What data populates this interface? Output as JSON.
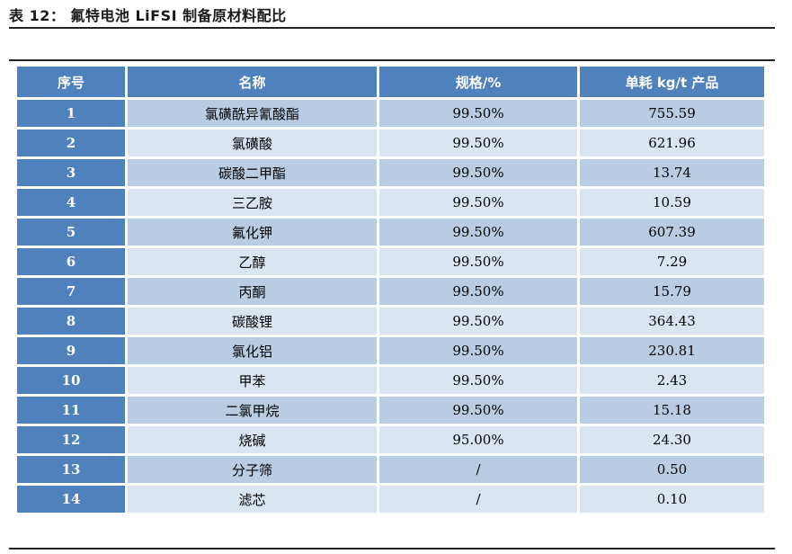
{
  "title": "表 12：  氟特电池 LiFSI 制备原材料配比",
  "headers": [
    "序号",
    "名称",
    "规格/%",
    "单耗 kg/t 产品"
  ],
  "rows": [
    {
      "no": "1",
      "name": "氯磺酰异氰酸酯",
      "spec": "99.50%",
      "usage": "755.59"
    },
    {
      "no": "2",
      "name": "氯磺酸",
      "spec": "99.50%",
      "usage": "621.96"
    },
    {
      "no": "3",
      "name": "碳酸二甲酯",
      "spec": "99.50%",
      "usage": "13.74"
    },
    {
      "no": "4",
      "name": "三乙胺",
      "spec": "99.50%",
      "usage": "10.59"
    },
    {
      "no": "5",
      "name": "氟化钾",
      "spec": "99.50%",
      "usage": "607.39"
    },
    {
      "no": "6",
      "name": "乙醇",
      "spec": "99.50%",
      "usage": "7.29"
    },
    {
      "no": "7",
      "name": "丙酮",
      "spec": "99.50%",
      "usage": "15.79"
    },
    {
      "no": "8",
      "name": "碳酸锂",
      "spec": "99.50%",
      "usage": "364.43"
    },
    {
      "no": "9",
      "name": "氯化铝",
      "spec": "99.50%",
      "usage": "230.81"
    },
    {
      "no": "10",
      "name": "甲苯",
      "spec": "99.50%",
      "usage": "2.43"
    },
    {
      "no": "11",
      "name": "二氯甲烷",
      "spec": "99.50%",
      "usage": "15.18"
    },
    {
      "no": "12",
      "name": "烧碱",
      "spec": "95.00%",
      "usage": "24.30"
    },
    {
      "no": "13",
      "name": "分子筛",
      "spec": "/",
      "usage": "0.50"
    },
    {
      "no": "14",
      "name": "滤芯",
      "spec": "/",
      "usage": "0.10"
    }
  ]
}
